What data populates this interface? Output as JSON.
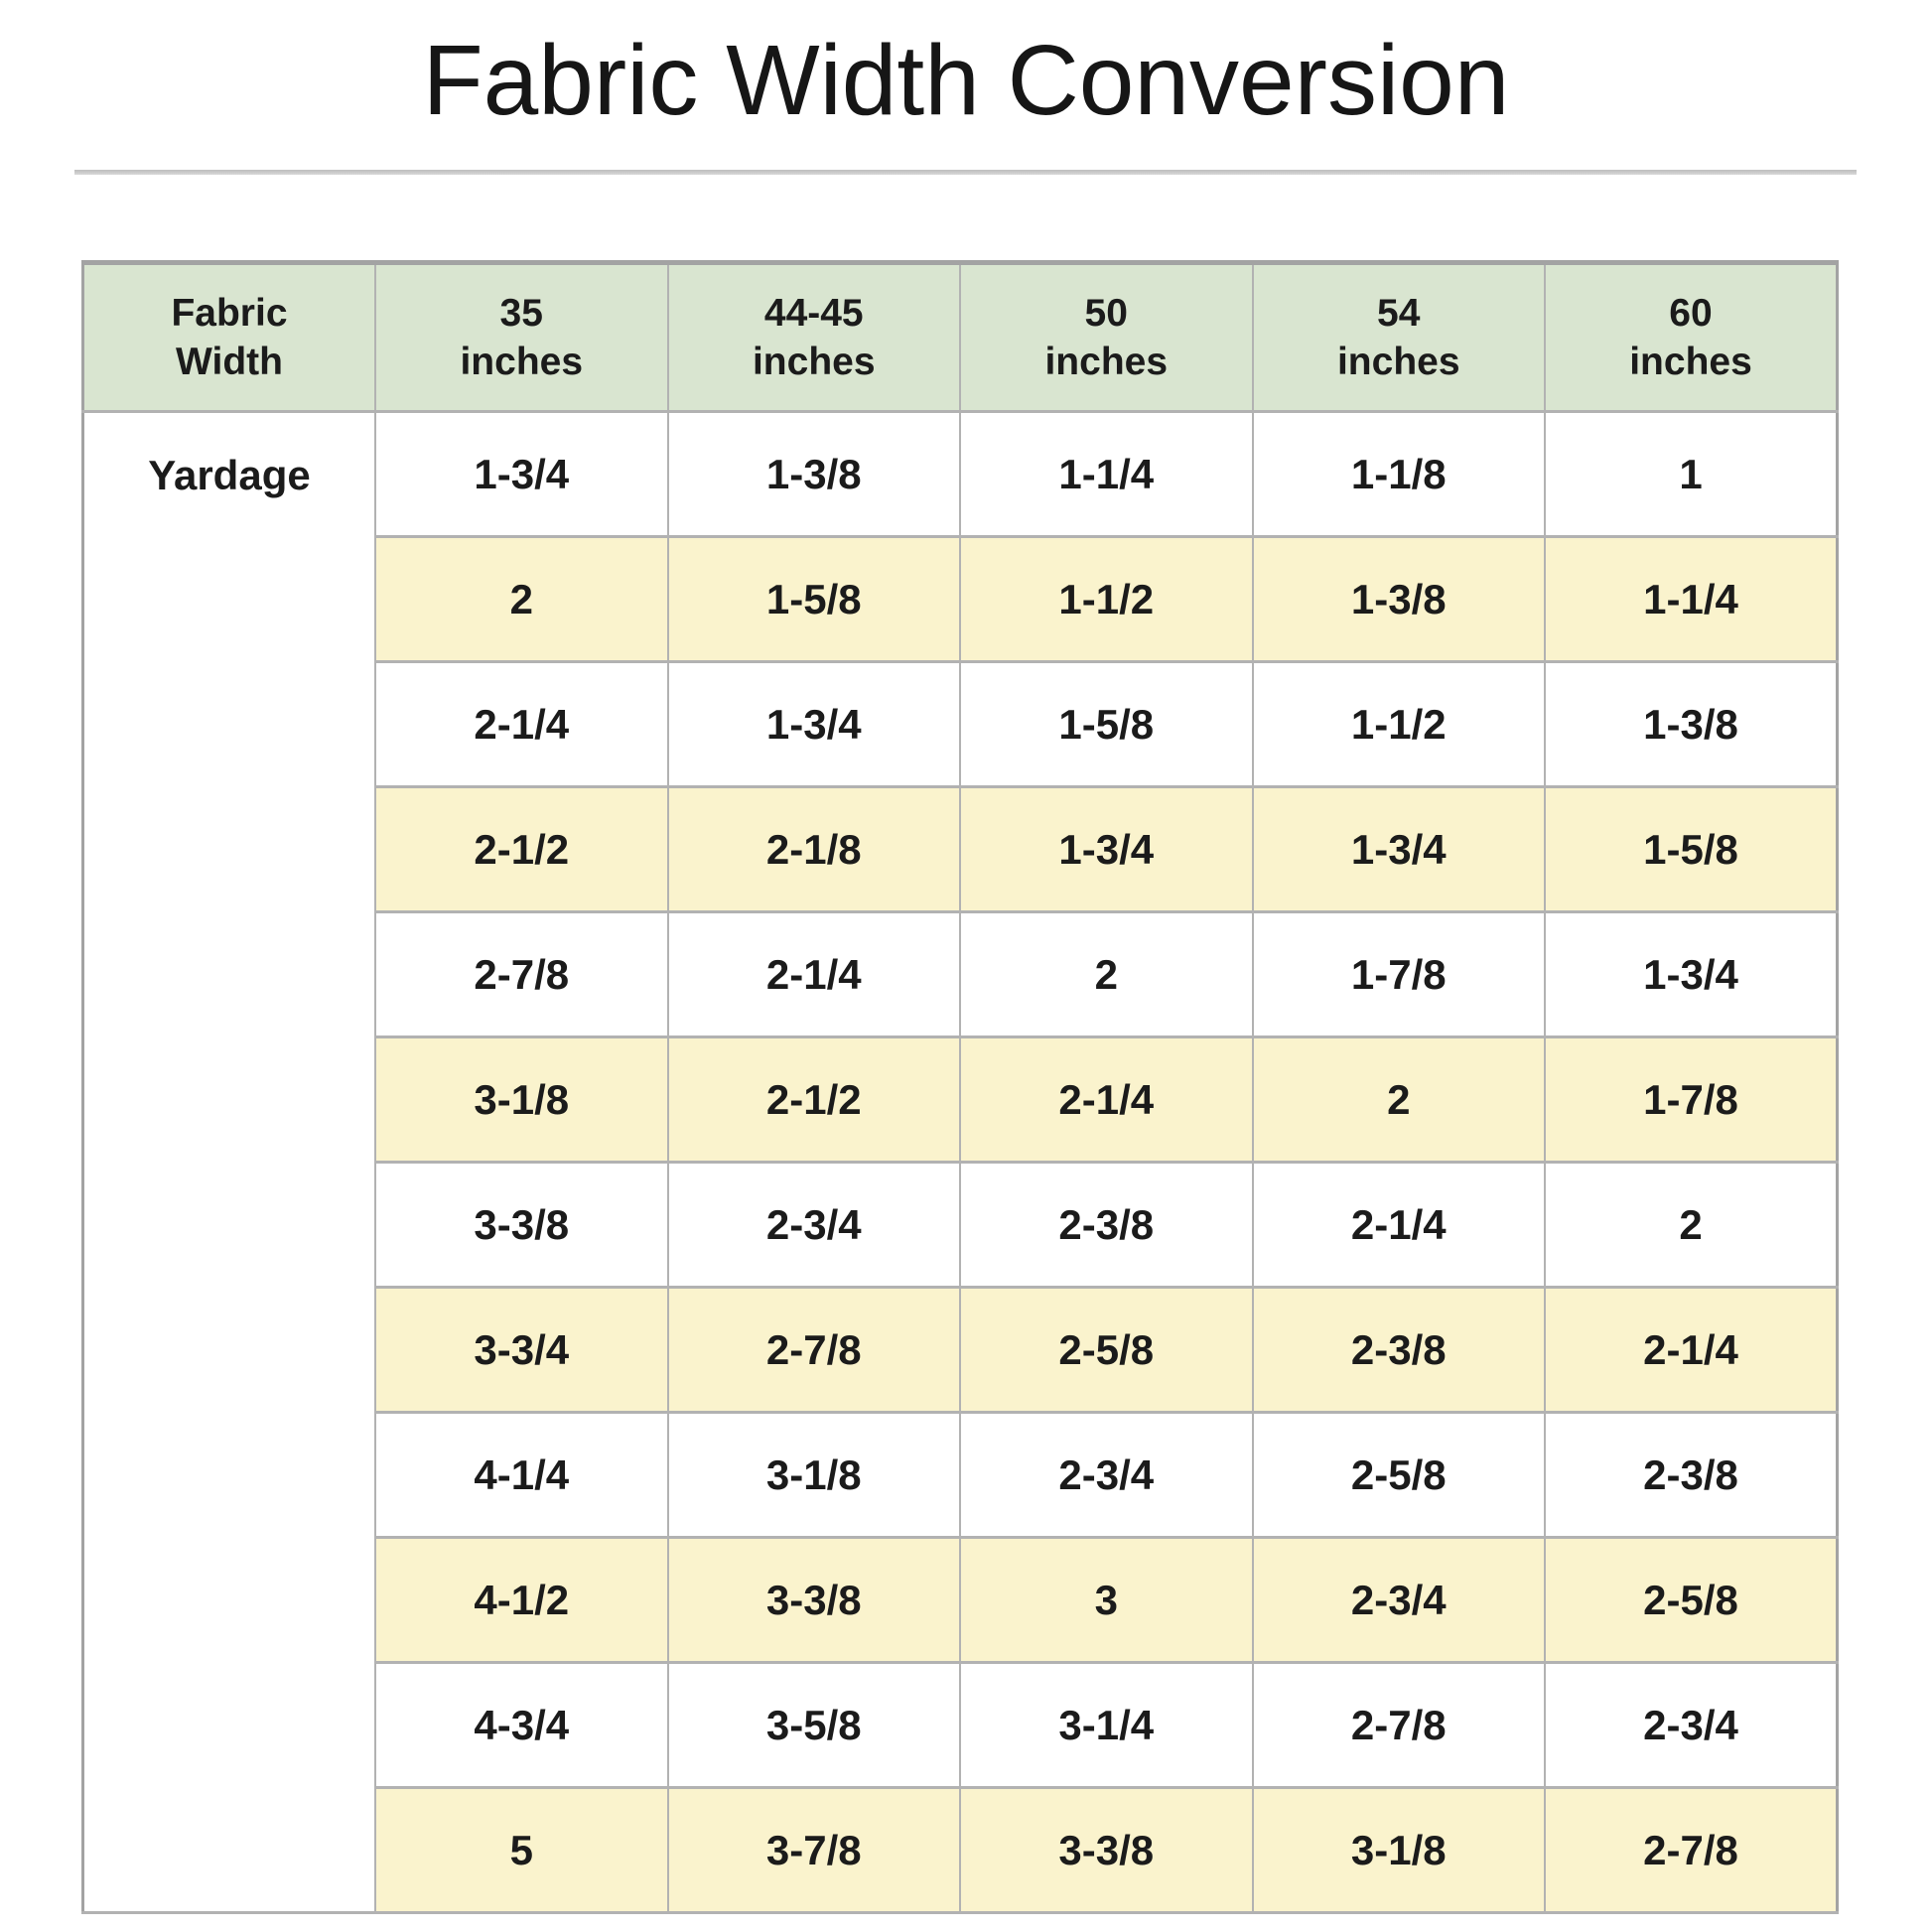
{
  "title": "Fabric Width Conversion",
  "colors": {
    "header_bg": "#d9e5d0",
    "stripe_bg": "#faf3cd",
    "border_color": "#b2b2b2",
    "outer_border": "#a3a3a3"
  },
  "table": {
    "row_label": "Yardage",
    "columns": [
      {
        "line1": "Fabric",
        "line2": "Width"
      },
      {
        "line1": "35",
        "line2": "inches"
      },
      {
        "line1": "44-45",
        "line2": "inches"
      },
      {
        "line1": "50",
        "line2": "inches"
      },
      {
        "line1": "54",
        "line2": "inches"
      },
      {
        "line1": "60",
        "line2": "inches"
      }
    ],
    "rows": [
      [
        "1-3/4",
        "1-3/8",
        "1-1/4",
        "1-1/8",
        "1"
      ],
      [
        "2",
        "1-5/8",
        "1-1/2",
        "1-3/8",
        "1-1/4"
      ],
      [
        "2-1/4",
        "1-3/4",
        "1-5/8",
        "1-1/2",
        "1-3/8"
      ],
      [
        "2-1/2",
        "2-1/8",
        "1-3/4",
        "1-3/4",
        "1-5/8"
      ],
      [
        "2-7/8",
        "2-1/4",
        "2",
        "1-7/8",
        "1-3/4"
      ],
      [
        "3-1/8",
        "2-1/2",
        "2-1/4",
        "2",
        "1-7/8"
      ],
      [
        "3-3/8",
        "2-3/4",
        "2-3/8",
        "2-1/4",
        "2"
      ],
      [
        "3-3/4",
        "2-7/8",
        "2-5/8",
        "2-3/8",
        "2-1/4"
      ],
      [
        "4-1/4",
        "3-1/8",
        "2-3/4",
        "2-5/8",
        "2-3/8"
      ],
      [
        "4-1/2",
        "3-3/8",
        "3",
        "2-3/4",
        "2-5/8"
      ],
      [
        "4-3/4",
        "3-5/8",
        "3-1/4",
        "2-7/8",
        "2-3/4"
      ],
      [
        "5",
        "3-7/8",
        "3-3/8",
        "3-1/8",
        "2-7/8"
      ]
    ]
  }
}
